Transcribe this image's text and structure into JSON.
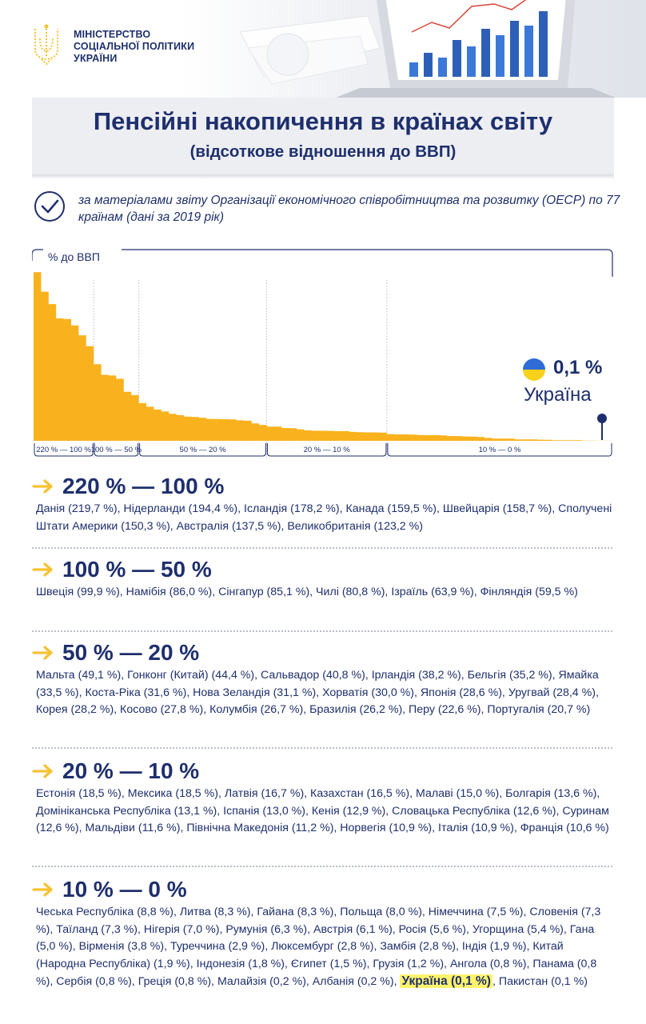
{
  "header": {
    "ministry_lines": [
      "МІНІСТЕРСТВО",
      "СОЦІАЛЬНОЇ ПОЛІТИКИ",
      "УКРАЇНИ"
    ]
  },
  "title": "Пенсійні накопичення в країнах світу",
  "subtitle": "(відсоткове відношення до ВВП)",
  "source_note": "за матеріалами звіту Організації економічного співробітництва та розвитку (ОЕСР) по 77 країнам (дані за 2019 рік)",
  "colors": {
    "navy": "#1e2f6d",
    "orange": "#f9b21d",
    "arrow_yellow": "#f5c232",
    "ua_blue": "#2f6cd6",
    "ua_yellow": "#f7d11a"
  },
  "icons": [
    "trident-emblem-icon",
    "check-circle-icon",
    "arrow-right-icon",
    "ukraine-flag-icon",
    "map-pin-icon"
  ],
  "chart_data": {
    "type": "area",
    "ylabel": "% до ВВП",
    "highlight": {
      "country": "Україна",
      "value_label": "0,1 %",
      "value": 0.1
    },
    "bands": [
      "220 % — 100 %",
      "100 % — 50 %",
      "50 % — 20 %",
      "20 % — 10 %",
      "10 % — 0 %"
    ],
    "categories": [
      "Данія",
      "Нідерланди",
      "Ісландія",
      "Канада",
      "Швейцарія",
      "Сполучені Штати Америки",
      "Австралія",
      "Великобританія",
      "Швеція",
      "Намібія",
      "Сінгапур",
      "Чилі",
      "Ізраїль",
      "Фінляндія",
      "Мальта",
      "Гонконг (Китай)",
      "Сальвадор",
      "Ірландія",
      "Бельгія",
      "Ямайка",
      "Коста-Ріка",
      "Нова Зеландія",
      "Хорватія",
      "Японія",
      "Уругвай",
      "Корея",
      "Косово",
      "Колумбія",
      "Бразилія",
      "Перу",
      "Португалія",
      "Естонія",
      "Мексика",
      "Латвія",
      "Казахстан",
      "Малаві",
      "Болгарія",
      "Домініканська Республіка",
      "Іспанія",
      "Кенія",
      "Словацька Республіка",
      "Суринам",
      "Мальдіви",
      "Північна Македонія",
      "Норвегія",
      "Італія",
      "Франція",
      "Чеська Республіка",
      "Литва",
      "Гайана",
      "Польща",
      "Німеччина",
      "Словенія",
      "Таїланд",
      "Нігерія",
      "Румунія",
      "Австрія",
      "Росія",
      "Угорщина",
      "Гана",
      "Вірменія",
      "Туреччина",
      "Люксембург",
      "Замбія",
      "Індія",
      "Китай (Народна Республіка)",
      "Індонезія",
      "Єгипет",
      "Грузія",
      "Ангола",
      "Панама",
      "Сербія",
      "Греція",
      "Малайзія",
      "Албанія",
      "Україна",
      "Пакистан"
    ],
    "values": [
      219.7,
      194.4,
      178.2,
      159.5,
      158.7,
      150.3,
      137.5,
      123.2,
      99.9,
      86.0,
      85.1,
      80.8,
      63.9,
      59.5,
      49.1,
      44.4,
      40.8,
      38.2,
      35.2,
      33.5,
      31.6,
      31.1,
      30.0,
      28.6,
      28.4,
      28.2,
      27.8,
      26.7,
      26.2,
      22.6,
      20.7,
      18.5,
      18.5,
      16.7,
      16.5,
      15.0,
      13.6,
      13.1,
      13.0,
      12.9,
      12.6,
      12.6,
      11.6,
      11.2,
      10.9,
      10.9,
      10.6,
      8.8,
      8.3,
      8.3,
      8.0,
      7.5,
      7.3,
      7.3,
      7.0,
      6.3,
      6.1,
      5.6,
      5.4,
      5.0,
      3.8,
      2.9,
      2.8,
      2.8,
      1.9,
      1.9,
      1.8,
      1.5,
      1.2,
      0.8,
      0.8,
      0.8,
      0.8,
      0.2,
      0.2,
      0.1,
      0.1
    ],
    "ylim": [
      0,
      220
    ],
    "grid": false
  },
  "ranges": [
    {
      "heading": "220 % — 100 %",
      "text": "Данія (219,7 %), Нідерланди (194,4 %), Ісландія (178,2 %), Канада (159,5 %),  Швейцарія (158,7 %), Сполучені Штати Америки (150,3 %), Австралія (137,5 %), Великобританія (123,2 %)"
    },
    {
      "heading": "100 % — 50 %",
      "text": "Швеція (99,9 %), Намібія (86,0 %), Сінгапур (85,1 %), Чилі (80,8 %), Ізраїль (63,9 %), Фінляндія (59,5 %)"
    },
    {
      "heading": "50 % — 20 %",
      "text": "Мальта (49,1 %), Гонконг (Китай) (44,4 %), Сальвадор (40,8 %), Ірландія (38,2 %), Бельгія (35,2 %), Ямайка (33,5 %), Коста-Ріка (31,6 %), Нова Зеландія (31,1 %),  Хорватія (30,0 %), Японія (28,6 %), Уругвай (28,4 %), Корея (28,2 %), Косово (27,8 %), Колумбія (26,7 %), Бразилія (26,2 %), Перу (22,6 %), Португалія (20,7 %)"
    },
    {
      "heading": "20 % — 10 %",
      "text": "Естонія (18,5 %), Мексика (18,5 %), Латвія (16,7 %), Казахстан (16,5 %), Малаві (15,0 %), Болгарія (13,6 %), Домініканська Республіка (13,1 %), Іспанія (13,0 %), Кенія (12,9 %), Словацька Республіка (12,6 %), Суринам (12,6 %), Мальдіви (11,6 %), Північна Македонія (11,2 %), Норвегія (10,9 %), Італія (10,9 %), Франція (10,6 %)"
    },
    {
      "heading": "10 % — 0 %",
      "text_before": "Чеська Республіка (8,8 %), Литва (8,3 %), Гайана (8,3 %), Польща (8,0 %), Німеччина (7,5 %), Словенія (7,3 %), Таїланд (7,3 %), Нігерія (7,0 %), Румунія (6,3 %), Австрія (6,1 %), Росія (5,6 %), Угорщина (5,4 %), Гана (5,0 %), Вірменія (3,8 %), Туреччина (2,9 %), Люксембург (2,8 %), Замбія (2,8 %), Індія (1,9 %), Китай (Народна Республіка) (1,9 %),  Індонезія (1,8 %), Єгипет (1,5 %), Грузія (1,2 %), Ангола (0,8 %), Панама (0,8 %), Сербія (0,8 %), Греція (0,8 %), Малайзія (0,2 %), Албанія (0,2 %), ",
      "text_highlight": "Україна (0,1 %)",
      "text_after": ", Пакистан (0,1 %)"
    }
  ]
}
